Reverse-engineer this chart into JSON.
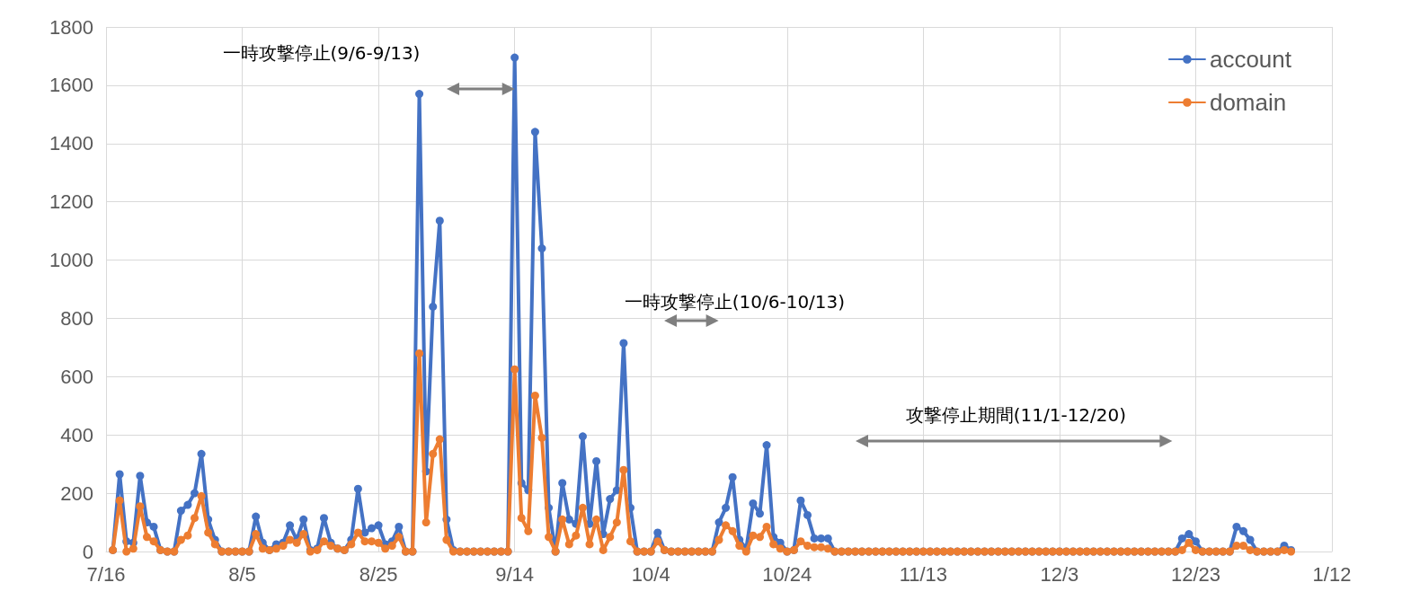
{
  "chart_data": {
    "type": "line",
    "annotations": [
      "一時攻撃停止(9/6-9/13)",
      "一時攻撃停止(10/6-10/13)",
      "攻撃停止期間(11/1-12/20)"
    ],
    "categories": [
      "7/16",
      null,
      null,
      null,
      null,
      null,
      null,
      null,
      null,
      null,
      null,
      null,
      null,
      null,
      null,
      null,
      null,
      null,
      null,
      null,
      "8/5",
      null,
      null,
      null,
      null,
      null,
      null,
      null,
      null,
      null,
      null,
      null,
      null,
      null,
      null,
      null,
      null,
      null,
      null,
      null,
      "8/25",
      null,
      null,
      null,
      null,
      null,
      null,
      null,
      null,
      null,
      null,
      null,
      null,
      null,
      null,
      null,
      null,
      null,
      null,
      null,
      "9/14",
      null,
      null,
      null,
      null,
      null,
      null,
      null,
      null,
      null,
      null,
      null,
      null,
      null,
      null,
      null,
      null,
      null,
      null,
      null,
      "10/4",
      null,
      null,
      null,
      null,
      null,
      null,
      null,
      null,
      null,
      null,
      null,
      null,
      null,
      null,
      null,
      null,
      null,
      null,
      null,
      "10/24",
      null,
      null,
      null,
      null,
      null,
      null,
      null,
      null,
      null,
      null,
      null,
      null,
      null,
      null,
      null,
      null,
      null,
      null,
      null,
      "11/13",
      null,
      null,
      null,
      null,
      null,
      null,
      null,
      null,
      null,
      null,
      null,
      null,
      null,
      null,
      null,
      null,
      null,
      null,
      null,
      "12/3",
      null,
      null,
      null,
      null,
      null,
      null,
      null,
      null,
      null,
      null,
      null,
      null,
      null,
      null,
      null,
      null,
      null,
      null,
      null,
      "12/23",
      null,
      null,
      null,
      null,
      null,
      null,
      null,
      null,
      null,
      null,
      null,
      null,
      null,
      null,
      null,
      null,
      null,
      null,
      null,
      "1/12"
    ],
    "series": [
      {
        "name": "account",
        "color": "#4472c4",
        "values": [
          null,
          5,
          265,
          35,
          30,
          260,
          100,
          85,
          5,
          0,
          0,
          140,
          160,
          200,
          335,
          110,
          40,
          0,
          0,
          0,
          0,
          0,
          120,
          30,
          5,
          25,
          30,
          90,
          40,
          110,
          5,
          10,
          115,
          30,
          10,
          5,
          40,
          215,
          65,
          80,
          90,
          25,
          35,
          85,
          0,
          0,
          1570,
          275,
          840,
          1135,
          110,
          5,
          0,
          0,
          0,
          0,
          0,
          0,
          0,
          0,
          1695,
          235,
          210,
          1440,
          1040,
          150,
          0,
          235,
          110,
          95,
          395,
          95,
          310,
          60,
          180,
          210,
          715,
          150,
          0,
          0,
          0,
          65,
          5,
          0,
          0,
          0,
          0,
          0,
          0,
          0,
          100,
          150,
          255,
          40,
          10,
          165,
          130,
          365,
          50,
          30,
          0,
          5,
          175,
          125,
          45,
          45,
          45,
          0,
          0,
          0,
          0,
          0,
          0,
          0,
          0,
          0,
          0,
          0,
          0,
          0,
          0,
          0,
          0,
          0,
          0,
          0,
          0,
          0,
          0,
          0,
          0,
          0,
          0,
          0,
          0,
          0,
          0,
          0,
          0,
          0,
          0,
          0,
          0,
          0,
          0,
          0,
          0,
          0,
          0,
          0,
          0,
          0,
          0,
          0,
          0,
          0,
          0,
          0,
          45,
          60,
          35,
          0,
          0,
          0,
          0,
          0,
          85,
          70,
          40,
          0,
          0,
          0,
          0,
          20,
          5,
          null,
          null,
          null,
          null,
          null,
          null
        ]
      },
      {
        "name": "domain",
        "color": "#ed7d31",
        "values": [
          null,
          5,
          175,
          0,
          10,
          155,
          50,
          35,
          5,
          0,
          0,
          40,
          55,
          115,
          190,
          65,
          25,
          0,
          0,
          0,
          0,
          0,
          60,
          10,
          5,
          10,
          20,
          40,
          30,
          60,
          0,
          5,
          35,
          20,
          10,
          5,
          25,
          65,
          35,
          35,
          30,
          10,
          20,
          50,
          0,
          0,
          680,
          100,
          335,
          385,
          40,
          0,
          0,
          0,
          0,
          0,
          0,
          0,
          0,
          0,
          625,
          115,
          70,
          535,
          390,
          50,
          0,
          110,
          25,
          55,
          150,
          25,
          110,
          5,
          50,
          100,
          280,
          35,
          0,
          0,
          0,
          35,
          5,
          0,
          0,
          0,
          0,
          0,
          0,
          0,
          40,
          90,
          70,
          20,
          0,
          55,
          50,
          85,
          25,
          10,
          0,
          5,
          35,
          20,
          15,
          15,
          10,
          0,
          0,
          0,
          0,
          0,
          0,
          0,
          0,
          0,
          0,
          0,
          0,
          0,
          0,
          0,
          0,
          0,
          0,
          0,
          0,
          0,
          0,
          0,
          0,
          0,
          0,
          0,
          0,
          0,
          0,
          0,
          0,
          0,
          0,
          0,
          0,
          0,
          0,
          0,
          0,
          0,
          0,
          0,
          0,
          0,
          0,
          0,
          0,
          0,
          0,
          0,
          5,
          30,
          5,
          0,
          0,
          0,
          0,
          0,
          20,
          20,
          5,
          0,
          0,
          0,
          0,
          5,
          0,
          null,
          null,
          null,
          null,
          null,
          null
        ]
      }
    ],
    "marker": "circle",
    "grid": true,
    "legend": "top right",
    "ylim": [
      0,
      1800
    ],
    "yticks": [
      0,
      200,
      400,
      600,
      800,
      1000,
      1200,
      1400,
      1600,
      1800
    ]
  }
}
